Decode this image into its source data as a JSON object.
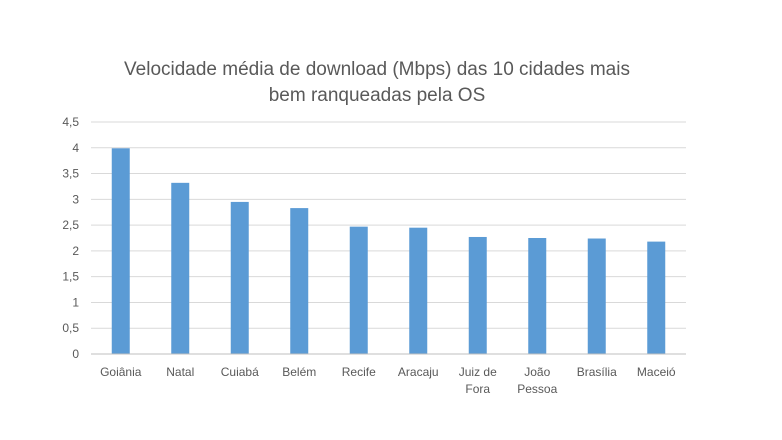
{
  "chart_data": {
    "type": "bar",
    "title": [
      "Velocidade média de download (Mbps) das 10 cidades mais",
      "bem ranqueadas pela OS"
    ],
    "categories": [
      [
        "Goiânia"
      ],
      [
        "Natal"
      ],
      [
        "Cuiabá"
      ],
      [
        "Belém"
      ],
      [
        "Recife"
      ],
      [
        "Aracaju"
      ],
      [
        "Juiz de",
        "Fora"
      ],
      [
        "João",
        "Pessoa"
      ],
      [
        "Brasília"
      ],
      [
        "Maceió"
      ]
    ],
    "values": [
      3.99,
      3.32,
      2.95,
      2.83,
      2.47,
      2.45,
      2.27,
      2.25,
      2.24,
      2.18
    ],
    "ylim": [
      0,
      4.5
    ],
    "yticks": [
      "0",
      "0,5",
      "1",
      "1,5",
      "2",
      "2,5",
      "3",
      "3,5",
      "4",
      "4,5"
    ],
    "ytick_values": [
      0,
      0.5,
      1,
      1.5,
      2,
      2.5,
      3,
      3.5,
      4,
      4.5
    ],
    "xlabel": "",
    "ylabel": "",
    "grid": true,
    "bar_color": "#5b9bd5"
  }
}
